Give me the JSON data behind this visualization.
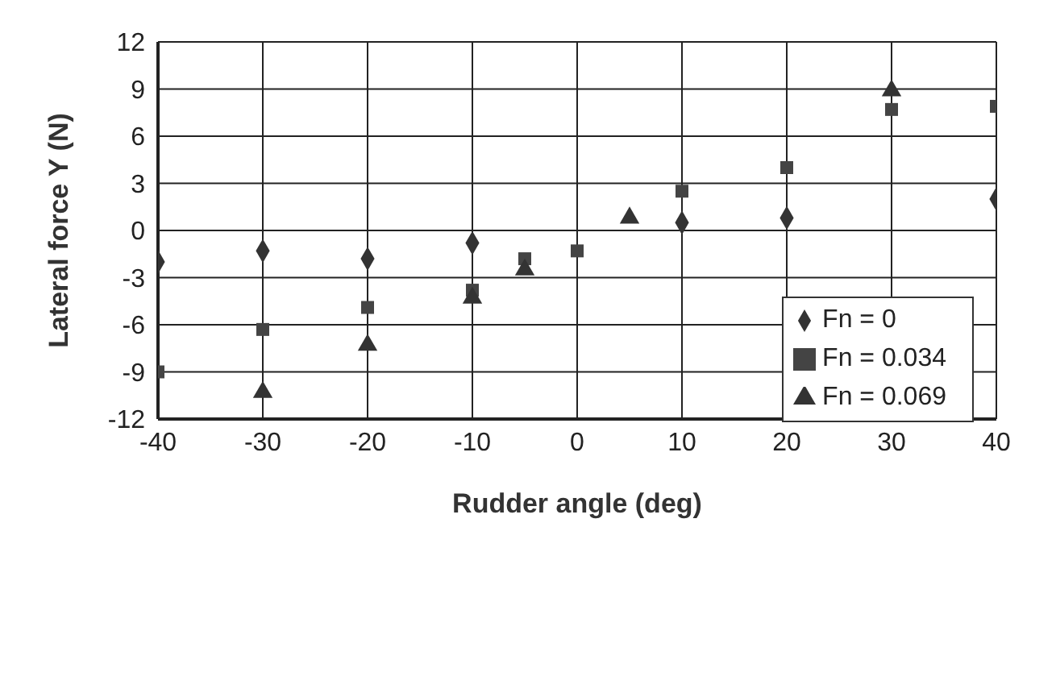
{
  "chart_data": {
    "type": "scatter",
    "xlabel": "Rudder angle (deg)",
    "ylabel": "Lateral force Y (N)",
    "xlim": [
      -40,
      40
    ],
    "xticks": [
      -40,
      -30,
      -20,
      -10,
      0,
      10,
      20,
      30,
      40
    ],
    "ylim": [
      -12,
      12
    ],
    "yticks": [
      -12,
      -9,
      -6,
      -3,
      0,
      3,
      6,
      9,
      12
    ],
    "grid": true,
    "legend": "bottom right",
    "series": [
      {
        "name": "Fn = 0",
        "color": "#333333",
        "marker": "diamond",
        "x": [
          -40,
          -30,
          -20,
          -10,
          10,
          20,
          40
        ],
        "values": [
          -2,
          -1.3,
          -1.8,
          -0.8,
          0.5,
          0.8,
          2
        ]
      },
      {
        "name": "Fn = 0.034",
        "color": "#444444",
        "marker": "square",
        "x": [
          -40,
          -30,
          -20,
          -10,
          -5,
          0,
          5,
          10,
          20,
          30,
          40
        ],
        "values": [
          -9,
          -6.3,
          -4.9,
          -3.8,
          -1.8,
          -1.3,
          null,
          2.5,
          4,
          7.7,
          7.9
        ]
      },
      {
        "name": "Fn = 0.069",
        "color": "#333333",
        "marker": "triangle",
        "x": [
          -30,
          -20,
          -10,
          -5,
          5,
          30
        ],
        "values": [
          -10.3,
          -7.3,
          -4.3,
          -2.5,
          0.8,
          8.9
        ]
      }
    ]
  }
}
